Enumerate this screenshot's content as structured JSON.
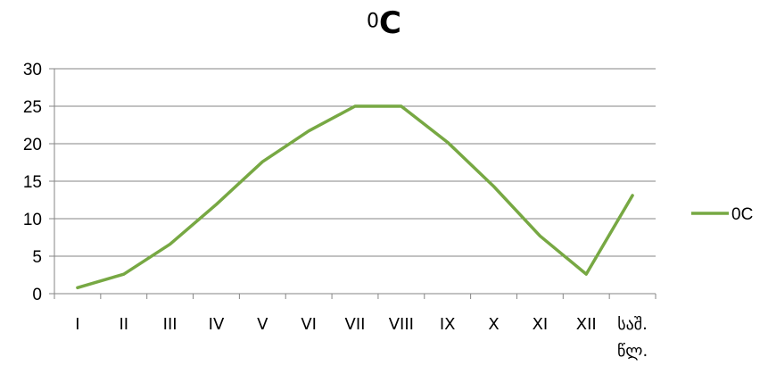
{
  "chart_data": {
    "type": "line",
    "title_prefix": "0",
    "title_main": "C",
    "categories": [
      "I",
      "II",
      "III",
      "IV",
      "V",
      "VI",
      "VII",
      "VIII",
      "IX",
      "X",
      "XI",
      "XII",
      "საშ.\nწლ."
    ],
    "series": [
      {
        "name": "0C",
        "values": [
          0.8,
          2.6,
          6.6,
          11.9,
          17.6,
          21.7,
          25.0,
          25.0,
          20.2,
          14.3,
          7.7,
          2.6,
          13.1
        ],
        "color": "#77a843"
      }
    ],
    "ylim": [
      0,
      30
    ],
    "yticks": [
      0,
      5,
      10,
      15,
      20,
      25,
      30
    ],
    "grid": true,
    "legend": "right"
  }
}
